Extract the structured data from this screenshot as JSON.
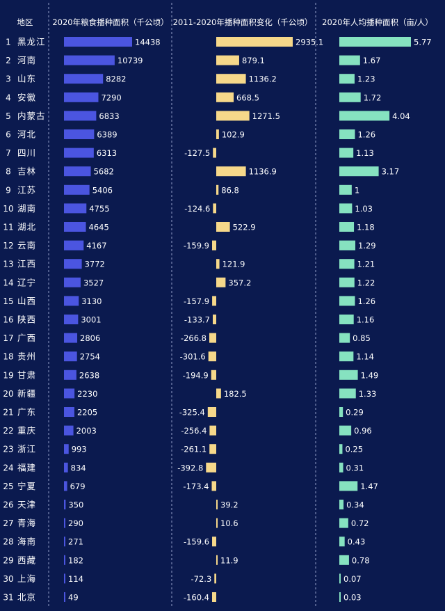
{
  "header": {
    "region": "地区",
    "col1": "2020年粮食播种面积（千公顷）",
    "col2": "2011-2020年播种面积变化（千公顷）",
    "col3": "2020年人均播种面积（亩/人）"
  },
  "colors": {
    "background": "#0b1a4f",
    "area_bar": "#4b55e0",
    "change_bar": "#f6d88a",
    "per_capita_bar": "#86e2c0"
  },
  "chart_data": [
    {
      "type": "bar",
      "orientation": "horizontal",
      "title": "2020年粮食播种面积（千公顷）",
      "categories": [
        "黑龙江",
        "河南",
        "山东",
        "安徽",
        "内蒙古",
        "河北",
        "四川",
        "吉林",
        "江苏",
        "湖南",
        "湖北",
        "云南",
        "江西",
        "辽宁",
        "山西",
        "陕西",
        "广西",
        "贵州",
        "甘肃",
        "新疆",
        "广东",
        "重庆",
        "浙江",
        "福建",
        "宁夏",
        "天津",
        "青海",
        "海南",
        "西藏",
        "上海",
        "北京"
      ],
      "ranks": [
        "1",
        "2",
        "3",
        "4",
        "5",
        "6",
        "7",
        "8",
        "9",
        "10",
        "11",
        "12",
        "13",
        "14",
        "15",
        "16",
        "17",
        "18",
        "19",
        "20",
        "21",
        "22",
        "23",
        "24",
        "25",
        "26",
        "27",
        "28",
        "29",
        "30",
        "31"
      ],
      "values": [
        14438,
        10739,
        8282,
        7290,
        6833,
        6389,
        6313,
        5682,
        5406,
        4755,
        4645,
        4167,
        3772,
        3527,
        3130,
        3001,
        2806,
        2754,
        2638,
        2230,
        2205,
        2003,
        993,
        834,
        679,
        350,
        290,
        271,
        182,
        114,
        49
      ],
      "labels": [
        "14438",
        "10739",
        "8282",
        "7290",
        "6833",
        "6389",
        "6313",
        "5682",
        "5406",
        "4755",
        "4645",
        "4167",
        "3772",
        "3527",
        "3130",
        "3001",
        "2806",
        "2754",
        "2638",
        "2230",
        "2205",
        "2003",
        "993",
        "834",
        "679",
        "350",
        "290",
        "271",
        "182",
        "114",
        "49"
      ]
    },
    {
      "type": "bar",
      "orientation": "horizontal",
      "title": "2011-2020年播种面积变化（千公顷）",
      "values": [
        2935.1,
        879.1,
        1136.2,
        668.5,
        1271.5,
        102.9,
        -127.5,
        1136.9,
        86.8,
        -124.6,
        522.9,
        -159.9,
        121.9,
        357.2,
        -157.9,
        -133.7,
        -266.8,
        -301.6,
        -194.9,
        182.5,
        -325.4,
        -256.4,
        -261.1,
        -392.8,
        -173.4,
        39.2,
        10.6,
        -159.6,
        11.9,
        -72.3,
        -160.4
      ],
      "labels": [
        "2935.1",
        "879.1",
        "1136.2",
        "668.5",
        "1271.5",
        "102.9",
        "-127.5",
        "1136.9",
        "86.8",
        "-124.6",
        "522.9",
        "-159.9",
        "121.9",
        "357.2",
        "-157.9",
        "-133.7",
        "-266.8",
        "-301.6",
        "-194.9",
        "182.5",
        "-325.4",
        "-256.4",
        "-261.1",
        "-392.8",
        "-173.4",
        "39.2",
        "10.6",
        "-159.6",
        "11.9",
        "-72.3",
        "-160.4"
      ]
    },
    {
      "type": "bar",
      "orientation": "horizontal",
      "title": "2020年人均播种面积（亩/人）",
      "values": [
        5.77,
        1.67,
        1.23,
        1.72,
        4.04,
        1.26,
        1.13,
        3.17,
        1,
        1.03,
        1.18,
        1.29,
        1.21,
        1.22,
        1.26,
        1.16,
        0.85,
        1.14,
        1.49,
        1.33,
        0.29,
        0.96,
        0.25,
        0.31,
        1.47,
        0.34,
        0.72,
        0.43,
        0.78,
        0.07,
        0.03
      ],
      "labels": [
        "5.77",
        "1.67",
        "1.23",
        "1.72",
        "4.04",
        "1.26",
        "1.13",
        "3.17",
        "1",
        "1.03",
        "1.18",
        "1.29",
        "1.21",
        "1.22",
        "1.26",
        "1.16",
        "0.85",
        "1.14",
        "1.49",
        "1.33",
        "0.29",
        "0.96",
        "0.25",
        "0.31",
        "1.47",
        "0.34",
        "0.72",
        "0.43",
        "0.78",
        "0.07",
        "0.03"
      ]
    }
  ]
}
